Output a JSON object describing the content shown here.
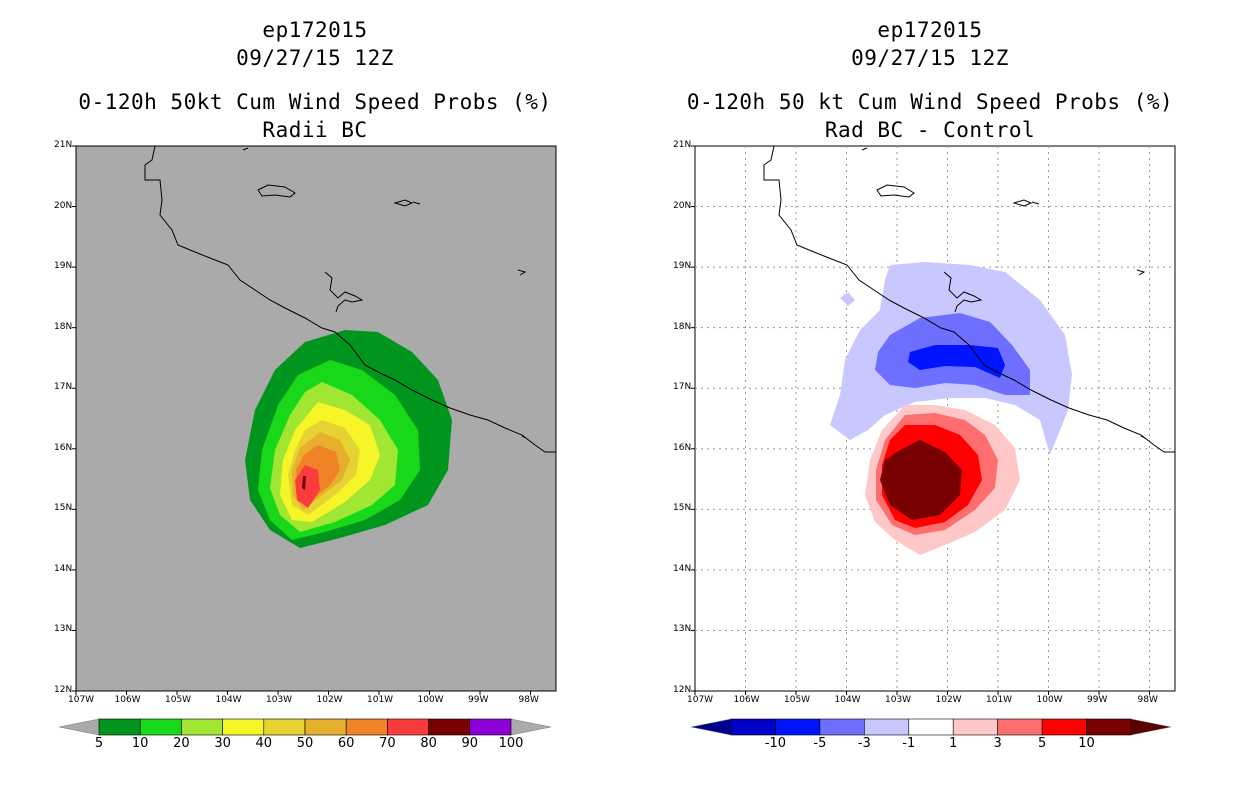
{
  "left_panel": {
    "title_lines": [
      "ep172015",
      "09/27/15 12Z",
      "0-120h 50kt Cum Wind Speed Probs (%)",
      "Radii BC"
    ],
    "lat_labels": [
      "21N",
      "20N",
      "19N",
      "18N",
      "17N",
      "16N",
      "15N",
      "14N",
      "13N",
      "12N"
    ],
    "lon_labels": [
      "107W",
      "106W",
      "105W",
      "104W",
      "103W",
      "102W",
      "101W",
      "100W",
      "99W",
      "98W"
    ],
    "colorbar": {
      "colors": [
        "#00961e",
        "#19d819",
        "#a0e632",
        "#f5f528",
        "#e6d232",
        "#e6af2d",
        "#f08228",
        "#fa3c3c",
        "#780000",
        "#8c00d8"
      ],
      "labels": [
        "5",
        "10",
        "20",
        "30",
        "40",
        "50",
        "60",
        "70",
        "80",
        "90",
        "100"
      ]
    }
  },
  "right_panel": {
    "title_lines": [
      "ep172015",
      "09/27/15 12Z",
      "0-120h 50 kt Cum Wind Speed Probs (%)",
      "Rad BC - Control"
    ],
    "lat_labels": [
      "21N",
      "20N",
      "19N",
      "18N",
      "17N",
      "16N",
      "15N",
      "14N",
      "13N",
      "12N"
    ],
    "lon_labels": [
      "107W",
      "106W",
      "105W",
      "104W",
      "103W",
      "102W",
      "101W",
      "100W",
      "99W",
      "98W"
    ],
    "colorbar": {
      "colors": [
        "#0000c8",
        "#0014ff",
        "#6e6eff",
        "#c8c8ff",
        "#ffffff",
        "#ffc8c8",
        "#ff6e6e",
        "#ff0000",
        "#780000"
      ],
      "labels": [
        "-10",
        "-5",
        "-3",
        "-1",
        "1",
        "3",
        "5",
        "10"
      ]
    }
  },
  "colors": {
    "land_background": "#aaaaaa",
    "coast": "#000000"
  }
}
